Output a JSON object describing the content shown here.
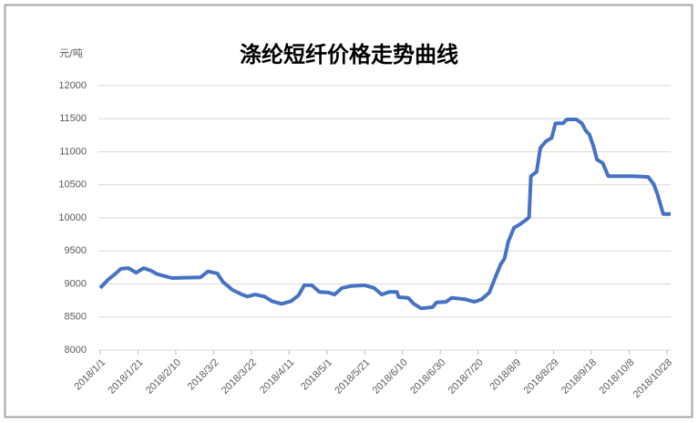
{
  "chart_data": {
    "type": "line",
    "title": "涤纶短纤价格走势曲线",
    "y_label": "元/吨",
    "x": [
      "2018/1/1",
      "2018/1/5",
      "2018/1/8",
      "2018/1/12",
      "2018/1/16",
      "2018/1/20",
      "2018/1/24",
      "2018/1/28",
      "2018/1/31",
      "2018/2/4",
      "2018/2/8",
      "2018/2/23",
      "2018/2/27",
      "2018/3/4",
      "2018/3/7",
      "2018/3/12",
      "2018/3/17",
      "2018/3/20",
      "2018/3/24",
      "2018/3/29",
      "2018/4/2",
      "2018/4/7",
      "2018/4/12",
      "2018/4/16",
      "2018/4/19",
      "2018/4/23",
      "2018/4/27",
      "2018/5/2",
      "2018/5/5",
      "2018/5/9",
      "2018/5/14",
      "2018/5/21",
      "2018/5/26",
      "2018/5/30",
      "2018/6/3",
      "2018/6/7",
      "2018/6/8",
      "2018/6/13",
      "2018/6/16",
      "2018/6/20",
      "2018/6/26",
      "2018/6/28",
      "2018/7/3",
      "2018/7/6",
      "2018/7/13",
      "2018/7/18",
      "2018/7/22",
      "2018/7/26",
      "2018/7/29",
      "2018/8/1",
      "2018/8/3",
      "2018/8/5",
      "2018/8/8",
      "2018/8/11",
      "2018/8/14",
      "2018/8/16",
      "2018/8/17",
      "2018/8/20",
      "2018/8/22",
      "2018/8/25",
      "2018/8/28",
      "2018/8/30",
      "2018/9/3",
      "2018/9/5",
      "2018/9/10",
      "2018/9/13",
      "2018/9/15",
      "2018/9/17",
      "2018/9/19",
      "2018/9/21",
      "2018/9/24",
      "2018/9/27",
      "2018/10/8",
      "2018/10/10",
      "2018/10/18",
      "2018/10/21",
      "2018/10/23",
      "2018/10/26",
      "2018/10/30"
    ],
    "series": [
      {
        "color": "#4472c4",
        "values": [
          8940,
          9060,
          9130,
          9230,
          9240,
          9170,
          9240,
          9200,
          9150,
          9120,
          9090,
          9100,
          9190,
          9160,
          9030,
          8910,
          8840,
          8810,
          8840,
          8810,
          8740,
          8700,
          8740,
          8830,
          8980,
          8980,
          8880,
          8870,
          8840,
          8940,
          8970,
          8980,
          8940,
          8840,
          8880,
          8880,
          8800,
          8790,
          8700,
          8630,
          8650,
          8720,
          8730,
          8790,
          8770,
          8730,
          8770,
          8870,
          9090,
          9300,
          9380,
          9640,
          9850,
          9900,
          9960,
          10010,
          10630,
          10700,
          11060,
          11160,
          11210,
          11430,
          11430,
          11490,
          11490,
          11430,
          11320,
          11260,
          11090,
          10880,
          10830,
          10630,
          10630,
          10630,
          10620,
          10510,
          10360,
          10060,
          10060
        ]
      }
    ],
    "xlim": [
      "2018/1/1",
      "2018/10/30"
    ],
    "xticks": [
      "2018/1/1",
      "2018/1/21",
      "2018/2/10",
      "2018/3/2",
      "2018/3/22",
      "2018/4/11",
      "2018/5/1",
      "2018/5/21",
      "2018/6/10",
      "2018/6/30",
      "2018/7/20",
      "2018/8/9",
      "2018/8/29",
      "2018/9/18",
      "2018/10/8",
      "2018/10/28"
    ],
    "ylim": [
      8000,
      12000
    ],
    "yticks": [
      8000,
      8500,
      9000,
      9500,
      10000,
      10500,
      11000,
      11500,
      12000
    ],
    "grid": true
  }
}
